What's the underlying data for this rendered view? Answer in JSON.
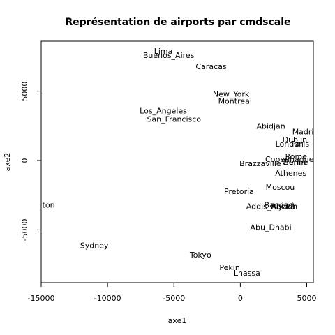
{
  "chart_data": {
    "type": "scatter",
    "title": "Représentation de airports par cmdscale",
    "xlabel": "axe1",
    "ylabel": "axe2",
    "xlim": [
      -15000,
      5500
    ],
    "ylim": [
      -8800,
      8600
    ],
    "xticks": [
      -15000,
      -10000,
      -5000,
      0,
      5000
    ],
    "yticks": [
      -5000,
      0,
      5000
    ],
    "xtick_labels": [
      "-15000",
      "-10000",
      "-5000",
      "0",
      "5000"
    ],
    "ytick_labels": [
      "-5000",
      "0",
      "5000"
    ],
    "grid": false,
    "marker": "text-label",
    "points": [
      {
        "label": "Lima",
        "x": -5800,
        "y": 7900
      },
      {
        "label": "Buenos_Aires",
        "x": -5400,
        "y": 7600
      },
      {
        "label": "Caracas",
        "x": -2200,
        "y": 6800
      },
      {
        "label": "New_York",
        "x": -700,
        "y": 4800
      },
      {
        "label": "Montreal",
        "x": -400,
        "y": 4300
      },
      {
        "label": "Los_Angeles",
        "x": -5800,
        "y": 3600
      },
      {
        "label": "San_Francisco",
        "x": -5000,
        "y": 3000
      },
      {
        "label": "Abidjan",
        "x": 2300,
        "y": 2500
      },
      {
        "label": "Madrid",
        "x": 4900,
        "y": 2100
      },
      {
        "label": "Dublin",
        "x": 4100,
        "y": 1500
      },
      {
        "label": "London",
        "x": 3700,
        "y": 1200
      },
      {
        "label": "Paris",
        "x": 4500,
        "y": 1200
      },
      {
        "label": "Rome",
        "x": 4200,
        "y": 300
      },
      {
        "label": "Copenhague",
        "x": 3700,
        "y": 100
      },
      {
        "label": "Berlin",
        "x": 4100,
        "y": -100
      },
      {
        "label": "Vienne",
        "x": 4100,
        "y": -100
      },
      {
        "label": "Brazzaville",
        "x": 1500,
        "y": -200
      },
      {
        "label": "Athenes",
        "x": 3800,
        "y": -900
      },
      {
        "label": "Moscou",
        "x": 3000,
        "y": -1900
      },
      {
        "label": "Pretoria",
        "x": -100,
        "y": -2200
      },
      {
        "label": "Bagdad",
        "x": 2900,
        "y": -3200
      },
      {
        "label": "Addis_Abeba",
        "x": 2300,
        "y": -3300
      },
      {
        "label": "Riyadh",
        "x": 3300,
        "y": -3300
      },
      {
        "label": "Abu_Dhabi",
        "x": 2300,
        "y": -4800
      },
      {
        "label": "Wellington",
        "x": -15500,
        "y": -3200
      },
      {
        "label": "Sydney",
        "x": -11000,
        "y": -6100
      },
      {
        "label": "Tokyo",
        "x": -3000,
        "y": -6800
      },
      {
        "label": "Pekin",
        "x": -800,
        "y": -7700
      },
      {
        "label": "Lhassa",
        "x": 500,
        "y": -8100
      }
    ]
  }
}
